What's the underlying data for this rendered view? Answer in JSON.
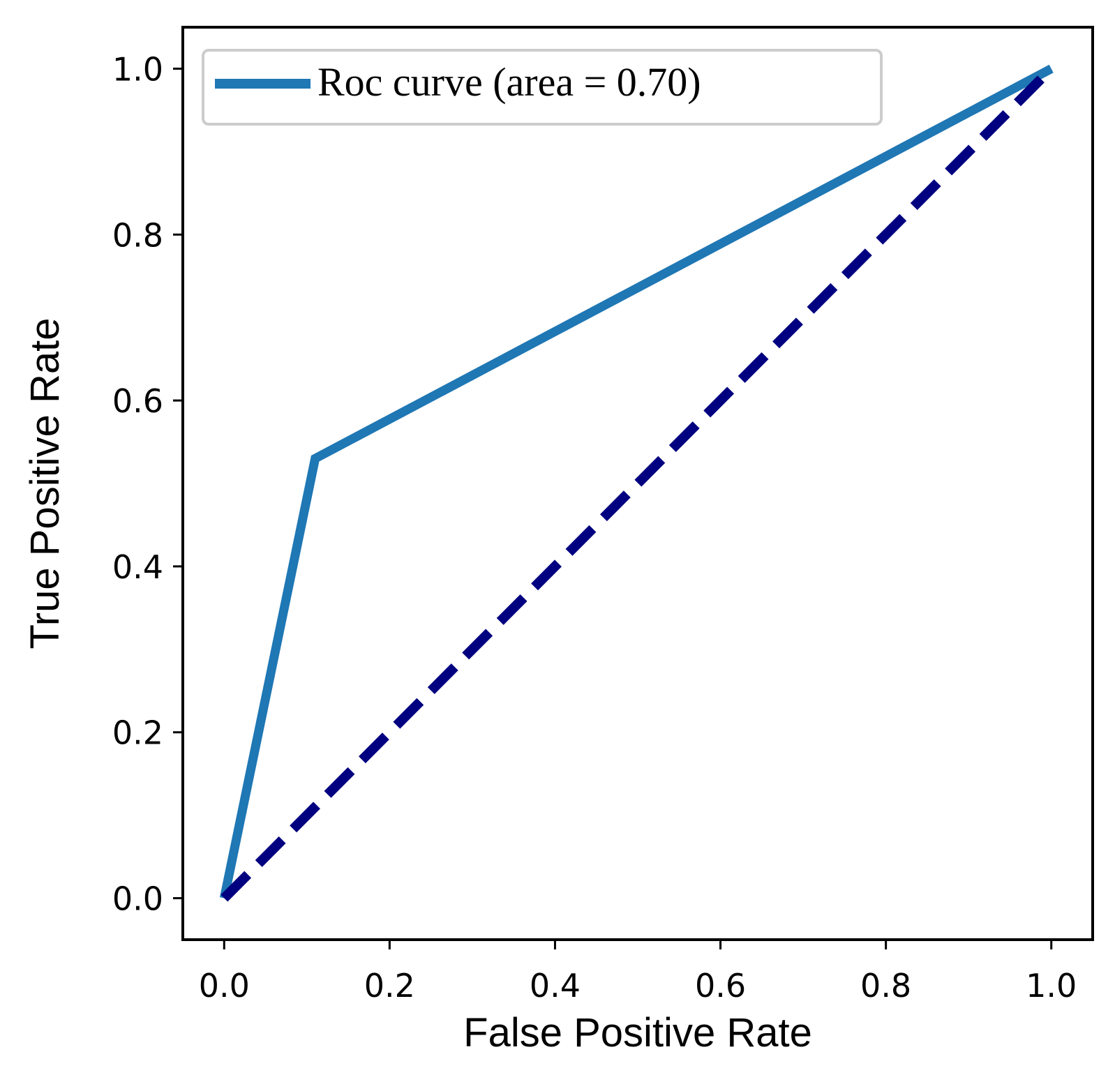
{
  "chart_data": {
    "type": "line",
    "xlabel": "False Positive Rate",
    "ylabel": "True Positive Rate",
    "xlim": [
      -0.05,
      1.05
    ],
    "ylim": [
      -0.05,
      1.05
    ],
    "x_ticks": [
      0.0,
      0.2,
      0.4,
      0.6,
      0.8,
      1.0
    ],
    "x_tick_labels": [
      "0.0",
      "0.2",
      "0.4",
      "0.6",
      "0.8",
      "1.0"
    ],
    "y_ticks": [
      0.0,
      0.2,
      0.4,
      0.6,
      0.8,
      1.0
    ],
    "y_tick_labels": [
      "0.0",
      "0.2",
      "0.4",
      "0.6",
      "0.8",
      "1.0"
    ],
    "grid": false,
    "legend_position": "top-left",
    "series": [
      {
        "name": "Roc curve (area = 0.70)",
        "x": [
          0.0,
          0.11,
          1.0
        ],
        "y": [
          0.0,
          0.53,
          1.0
        ],
        "color": "#1f77b4",
        "style": "solid"
      },
      {
        "name": "",
        "x": [
          0.0,
          1.0
        ],
        "y": [
          0.0,
          1.0
        ],
        "color": "#000080",
        "style": "dashed"
      }
    ]
  }
}
